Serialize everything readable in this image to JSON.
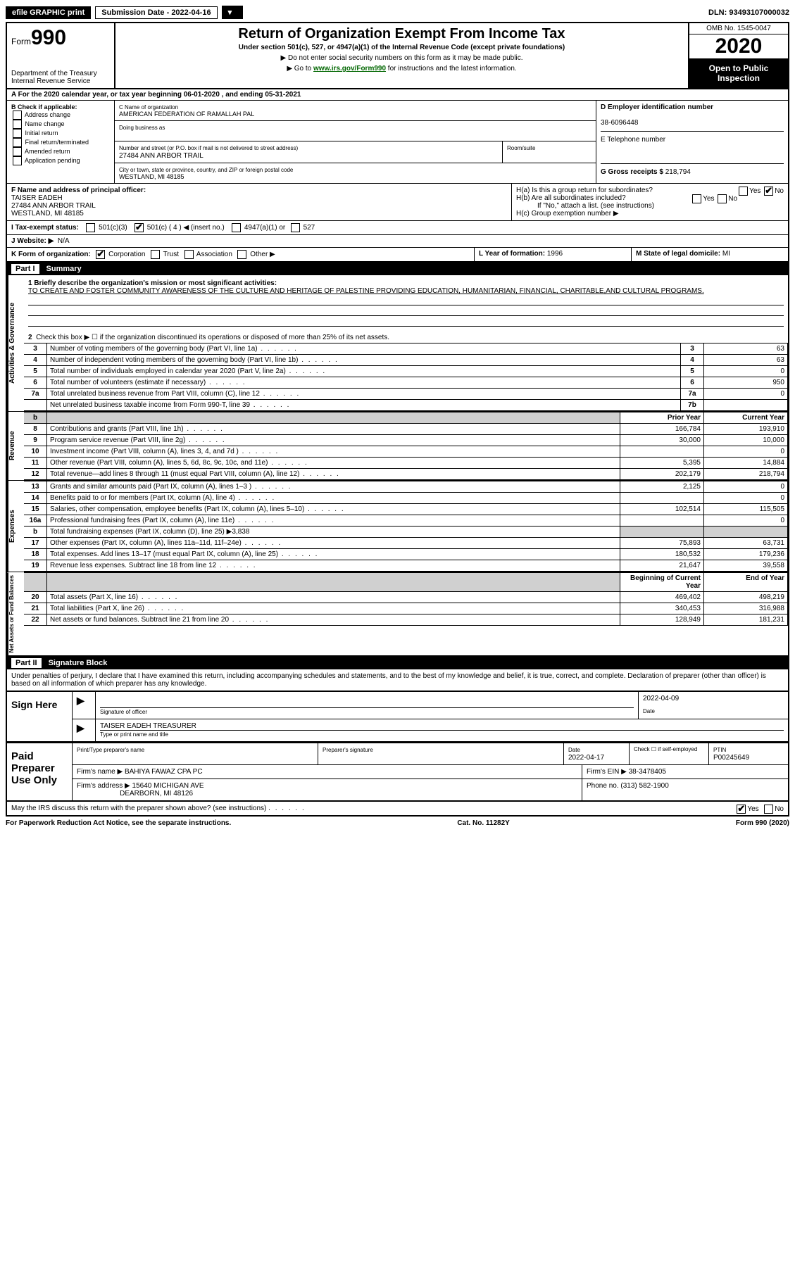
{
  "top": {
    "efile": "efile GRAPHIC print",
    "sub_date_label": "Submission Date - 2022-04-16",
    "dln": "DLN: 93493107000032"
  },
  "header": {
    "form_prefix": "Form",
    "form_number": "990",
    "dept": "Department of the Treasury",
    "irs": "Internal Revenue Service",
    "title": "Return of Organization Exempt From Income Tax",
    "subtitle": "Under section 501(c), 527, or 4947(a)(1) of the Internal Revenue Code (except private foundations)",
    "note1": "▶ Do not enter social security numbers on this form as it may be made public.",
    "note2_pre": "▶ Go to ",
    "note2_link": "www.irs.gov/Form990",
    "note2_post": " for instructions and the latest information.",
    "omb": "OMB No. 1545-0047",
    "year": "2020",
    "open": "Open to Public Inspection"
  },
  "row_a": "A For the 2020 calendar year, or tax year beginning 06-01-2020   , and ending 05-31-2021",
  "box_b": {
    "title": "B Check if applicable:",
    "items": [
      "Address change",
      "Name change",
      "Initial return",
      "Final return/terminated",
      "Amended return",
      "Application pending"
    ]
  },
  "box_c": {
    "label_name": "C Name of organization",
    "name": "AMERICAN FEDERATION OF RAMALLAH PAL",
    "label_dba": "Doing business as",
    "label_street": "Number and street (or P.O. box if mail is not delivered to street address)",
    "street": "27484 ANN ARBOR TRAIL",
    "label_room": "Room/suite",
    "label_city": "City or town, state or province, country, and ZIP or foreign postal code",
    "city": "WESTLAND, MI  48185"
  },
  "box_d": {
    "label": "D Employer identification number",
    "value": "38-6096448"
  },
  "box_e": {
    "label": "E Telephone number",
    "value": ""
  },
  "box_g": {
    "label": "G Gross receipts $",
    "value": "218,794"
  },
  "box_f": {
    "label": "F  Name and address of principal officer:",
    "name": "TAISER EADEH",
    "street": "27484 ANN ARBOR TRAIL",
    "city": "WESTLAND, MI  48185"
  },
  "box_h": {
    "ha_label": "H(a)  Is this a group return for subordinates?",
    "ha_yes": "Yes",
    "ha_no": "No",
    "hb_label": "H(b)  Are all subordinates included?",
    "hb_note": "If \"No,\" attach a list. (see instructions)",
    "hc_label": "H(c)  Group exemption number ▶"
  },
  "box_i": {
    "label": "I    Tax-exempt status:",
    "opt1": "501(c)(3)",
    "opt2": "501(c) ( 4 ) ◀ (insert no.)",
    "opt3": "4947(a)(1) or",
    "opt4": "527"
  },
  "box_j": {
    "label": "J   Website: ▶",
    "value": "N/A"
  },
  "box_k": {
    "label": "K Form of organization:",
    "opt1": "Corporation",
    "opt2": "Trust",
    "opt3": "Association",
    "opt4": "Other ▶"
  },
  "box_l": {
    "label": "L Year of formation:",
    "value": "1996"
  },
  "box_m": {
    "label": "M State of legal domicile:",
    "value": "MI"
  },
  "part1": {
    "header_num": "Part I",
    "header_title": "Summary",
    "mission_label": "1  Briefly describe the organization's mission or most significant activities:",
    "mission": "TO CREATE AND FOSTER COMMUNITY AWARENESS OF THE CULTURE AND HERITAGE OF PALESTINE PROVIDING EDUCATION, HUMANITARIAN, FINANCIAL, CHARITABLE,AND CULTURAL PROGRAMS.",
    "line2": "Check this box ▶ ☐  if the organization discontinued its operations or disposed of more than 25% of its net assets.",
    "gov_rows": [
      {
        "n": "3",
        "t": "Number of voting members of the governing body (Part VI, line 1a)",
        "c": "3",
        "v": "63"
      },
      {
        "n": "4",
        "t": "Number of independent voting members of the governing body (Part VI, line 1b)",
        "c": "4",
        "v": "63"
      },
      {
        "n": "5",
        "t": "Total number of individuals employed in calendar year 2020 (Part V, line 2a)",
        "c": "5",
        "v": "0"
      },
      {
        "n": "6",
        "t": "Total number of volunteers (estimate if necessary)",
        "c": "6",
        "v": "950"
      },
      {
        "n": "7a",
        "t": "Total unrelated business revenue from Part VIII, column (C), line 12",
        "c": "7a",
        "v": "0"
      },
      {
        "n": "",
        "t": "Net unrelated business taxable income from Form 990-T, line 39",
        "c": "7b",
        "v": ""
      }
    ],
    "col_prior": "Prior Year",
    "col_current": "Current Year",
    "rev_rows": [
      {
        "n": "8",
        "t": "Contributions and grants (Part VIII, line 1h)",
        "p": "166,784",
        "c": "193,910"
      },
      {
        "n": "9",
        "t": "Program service revenue (Part VIII, line 2g)",
        "p": "30,000",
        "c": "10,000"
      },
      {
        "n": "10",
        "t": "Investment income (Part VIII, column (A), lines 3, 4, and 7d )",
        "p": "",
        "c": "0"
      },
      {
        "n": "11",
        "t": "Other revenue (Part VIII, column (A), lines 5, 6d, 8c, 9c, 10c, and 11e)",
        "p": "5,395",
        "c": "14,884"
      },
      {
        "n": "12",
        "t": "Total revenue—add lines 8 through 11 (must equal Part VIII, column (A), line 12)",
        "p": "202,179",
        "c": "218,794"
      }
    ],
    "exp_rows": [
      {
        "n": "13",
        "t": "Grants and similar amounts paid (Part IX, column (A), lines 1–3 )",
        "p": "2,125",
        "c": "0"
      },
      {
        "n": "14",
        "t": "Benefits paid to or for members (Part IX, column (A), line 4)",
        "p": "",
        "c": "0"
      },
      {
        "n": "15",
        "t": "Salaries, other compensation, employee benefits (Part IX, column (A), lines 5–10)",
        "p": "102,514",
        "c": "115,505"
      },
      {
        "n": "16a",
        "t": "Professional fundraising fees (Part IX, column (A), line 11e)",
        "p": "",
        "c": "0"
      },
      {
        "n": "b",
        "t": "Total fundraising expenses (Part IX, column (D), line 25) ▶3,838",
        "p": "shade",
        "c": "shade"
      },
      {
        "n": "17",
        "t": "Other expenses (Part IX, column (A), lines 11a–11d, 11f–24e)",
        "p": "75,893",
        "c": "63,731"
      },
      {
        "n": "18",
        "t": "Total expenses. Add lines 13–17 (must equal Part IX, column (A), line 25)",
        "p": "180,532",
        "c": "179,236"
      },
      {
        "n": "19",
        "t": "Revenue less expenses. Subtract line 18 from line 12",
        "p": "21,647",
        "c": "39,558"
      }
    ],
    "col_begin": "Beginning of Current Year",
    "col_end": "End of Year",
    "na_rows": [
      {
        "n": "20",
        "t": "Total assets (Part X, line 16)",
        "p": "469,402",
        "c": "498,219"
      },
      {
        "n": "21",
        "t": "Total liabilities (Part X, line 26)",
        "p": "340,453",
        "c": "316,988"
      },
      {
        "n": "22",
        "t": "Net assets or fund balances. Subtract line 21 from line 20",
        "p": "128,949",
        "c": "181,231"
      }
    ],
    "side_gov": "Activities & Governance",
    "side_rev": "Revenue",
    "side_exp": "Expenses",
    "side_na": "Net Assets or Fund Balances"
  },
  "part2": {
    "header_num": "Part II",
    "header_title": "Signature Block",
    "penalty": "Under penalties of perjury, I declare that I have examined this return, including accompanying schedules and statements, and to the best of my knowledge and belief, it is true, correct, and complete. Declaration of preparer (other than officer) is based on all information of which preparer has any knowledge.",
    "sign_here": "Sign Here",
    "sig_officer": "Signature of officer",
    "sig_date": "Date",
    "sig_date_val": "2022-04-09",
    "sig_name": "TAISER EADEH  TREASURER",
    "sig_type": "Type or print name and title",
    "paid": "Paid Preparer Use Only",
    "prep_name_label": "Print/Type preparer's name",
    "prep_sig_label": "Preparer's signature",
    "prep_date_label": "Date",
    "prep_date": "2022-04-17",
    "prep_check": "Check ☐ if self-employed",
    "ptin_label": "PTIN",
    "ptin": "P00245649",
    "firm_name_label": "Firm's name    ▶",
    "firm_name": "BAHIYA FAWAZ CPA PC",
    "firm_ein_label": "Firm's EIN ▶",
    "firm_ein": "38-3478405",
    "firm_addr_label": "Firm's address ▶",
    "firm_addr": "15640 MICHIGAN AVE",
    "firm_addr2": "DEARBORN, MI  48126",
    "phone_label": "Phone no.",
    "phone": "(313) 582-1900",
    "discuss": "May the IRS discuss this return with the preparer shown above? (see instructions)",
    "yes": "Yes",
    "no": "No"
  },
  "footer": {
    "left": "For Paperwork Reduction Act Notice, see the separate instructions.",
    "mid": "Cat. No. 11282Y",
    "right": "Form 990 (2020)"
  },
  "colors": {
    "link": "#006600",
    "shade": "#d0d0d0"
  }
}
